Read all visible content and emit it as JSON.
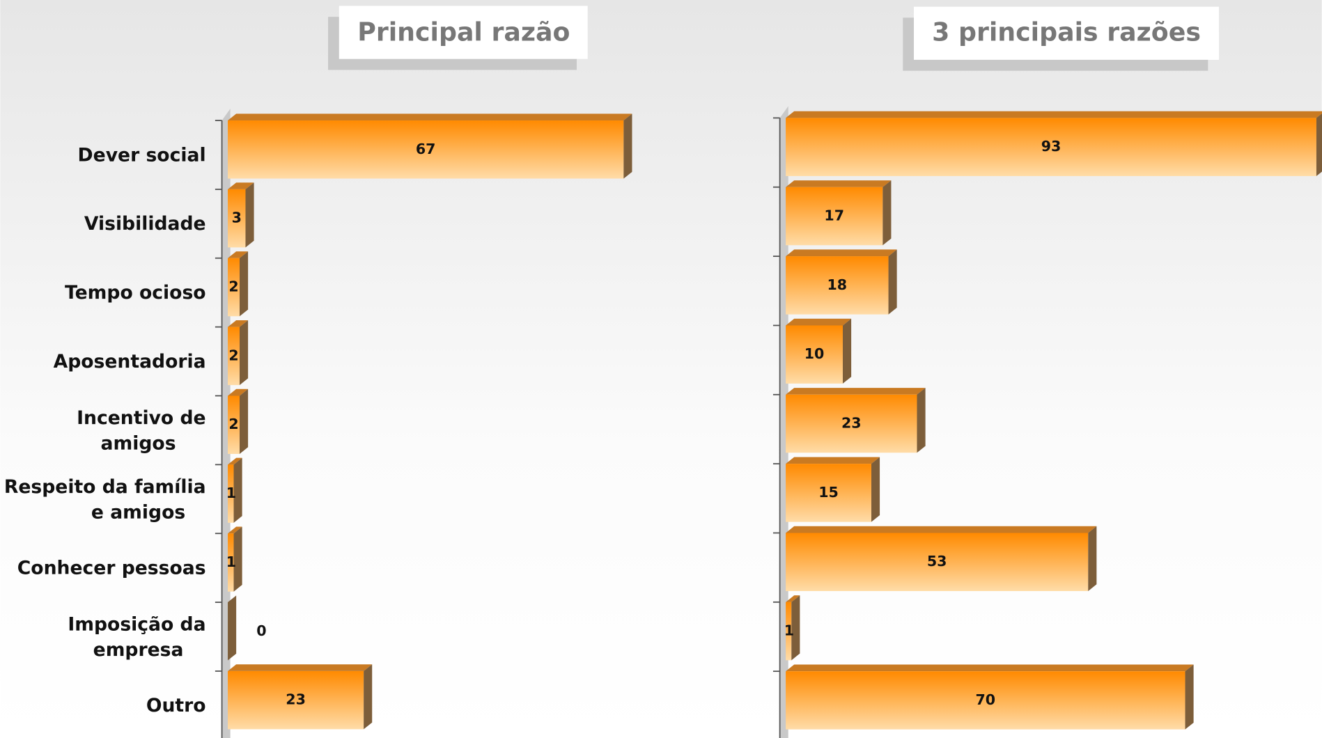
{
  "chart_data": [
    {
      "type": "hbar",
      "title": "Principal razão",
      "categories": [
        "Dever social",
        "Visibilidade",
        "Tempo ocioso",
        "Aposentadoria",
        "Incentivo de amigos",
        "Respeito da família e amigos",
        "Conhecer pessoas",
        "Imposição da empresa",
        "Outro"
      ],
      "values": [
        67,
        3,
        2,
        2,
        2,
        1,
        1,
        0,
        23
      ],
      "color": "#ff9a1e",
      "xlim": [
        0,
        100
      ]
    },
    {
      "type": "hbar",
      "title": "3 principais razões",
      "values": [
        93,
        17,
        18,
        10,
        23,
        15,
        53,
        1,
        70
      ],
      "color": "#ff9a1e",
      "xlim": [
        0,
        100
      ]
    }
  ]
}
